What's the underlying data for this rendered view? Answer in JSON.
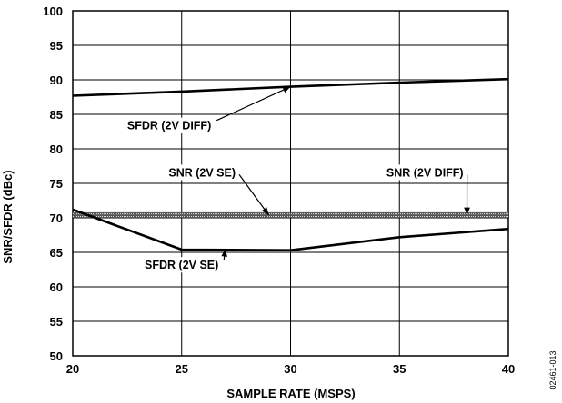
{
  "chart_data": {
    "type": "line",
    "xlabel": "SAMPLE RATE (MSPS)",
    "ylabel": "SNR/SFDR (dBc)",
    "xlim": [
      20,
      40
    ],
    "ylim": [
      50,
      100
    ],
    "xticks": [
      "20",
      "25",
      "30",
      "35",
      "40"
    ],
    "yticks": [
      "50",
      "55",
      "60",
      "65",
      "70",
      "75",
      "80",
      "85",
      "90",
      "95",
      "100"
    ],
    "grid": true,
    "series": [
      {
        "name": "SFDR (2V DIFF)",
        "style": "solid",
        "x": [
          20,
          25,
          30,
          35,
          40
        ],
        "y": [
          87.7,
          88.3,
          89.0,
          89.6,
          90.1
        ]
      },
      {
        "name": "SNR (2V SE)",
        "style": "hatched",
        "x": [
          20,
          25,
          30,
          35,
          40
        ],
        "y": [
          70.2,
          70.2,
          70.2,
          70.2,
          70.2
        ]
      },
      {
        "name": "SNR (2V DIFF)",
        "style": "hatched",
        "x": [
          20,
          25,
          30,
          35,
          40
        ],
        "y": [
          70.6,
          70.6,
          70.6,
          70.6,
          70.6
        ]
      },
      {
        "name": "SFDR (2V SE)",
        "style": "solid",
        "x": [
          20,
          25,
          30,
          35,
          40
        ],
        "y": [
          71.2,
          65.4,
          65.3,
          67.2,
          68.4
        ]
      }
    ],
    "annotations": [
      {
        "text": "SFDR (2V DIFF)",
        "x": 22.5,
        "y": 82.8,
        "arrow_to": [
          30.0,
          89.0
        ]
      },
      {
        "text": "SNR (2V SE)",
        "x": 24.4,
        "y": 76.0,
        "arrow_to": [
          29.0,
          70.4
        ]
      },
      {
        "text": "SNR (2V DIFF)",
        "x": 34.4,
        "y": 76.0,
        "arrow_to": [
          38.1,
          70.4
        ]
      },
      {
        "text": "SFDR (2V SE)",
        "x": 23.3,
        "y": 62.6,
        "arrow_to": [
          27.0,
          65.5
        ]
      }
    ],
    "figure_code": "02461-013"
  }
}
